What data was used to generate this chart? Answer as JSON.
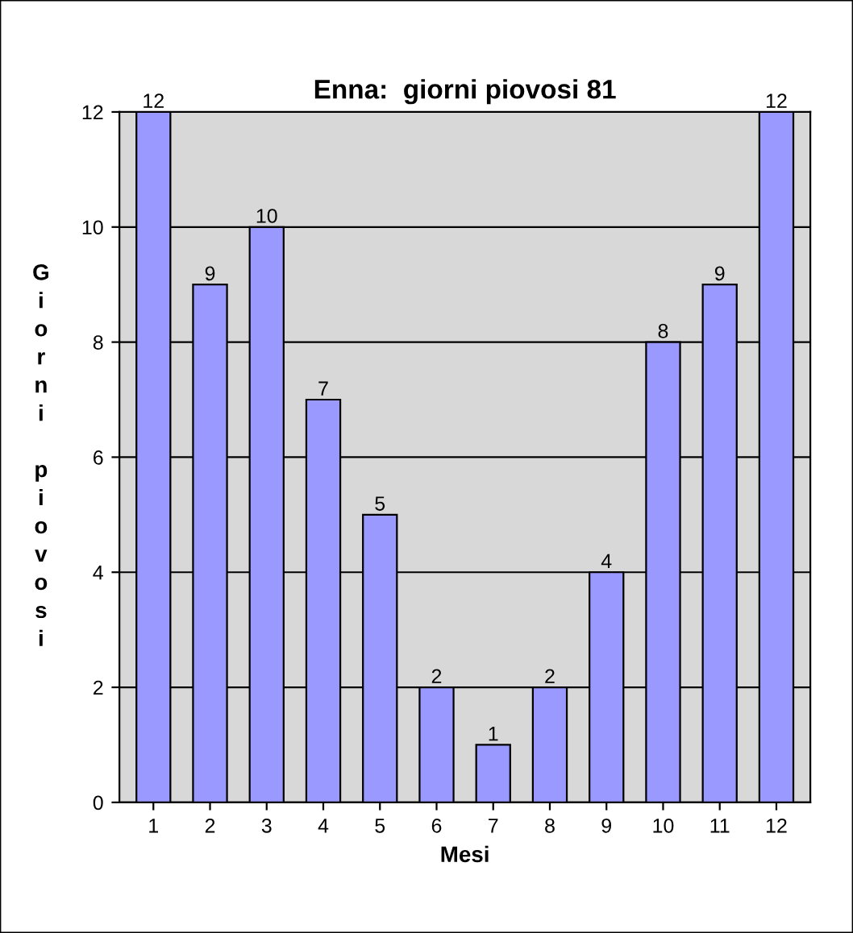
{
  "chart_data": {
    "type": "bar",
    "title": "Enna:  giorni piovosi 81",
    "xlabel": "Mesi",
    "ylabel": "Giorni piovosi",
    "categories": [
      "1",
      "2",
      "3",
      "4",
      "5",
      "6",
      "7",
      "8",
      "9",
      "10",
      "11",
      "12"
    ],
    "values": [
      12,
      9,
      10,
      7,
      5,
      2,
      1,
      2,
      4,
      8,
      9,
      12
    ],
    "color": "#9999ff",
    "ylim": [
      0,
      12
    ],
    "yticks": [
      0,
      2,
      4,
      6,
      8,
      10,
      12
    ],
    "grid": "y",
    "data_labels": true,
    "legend": false
  }
}
